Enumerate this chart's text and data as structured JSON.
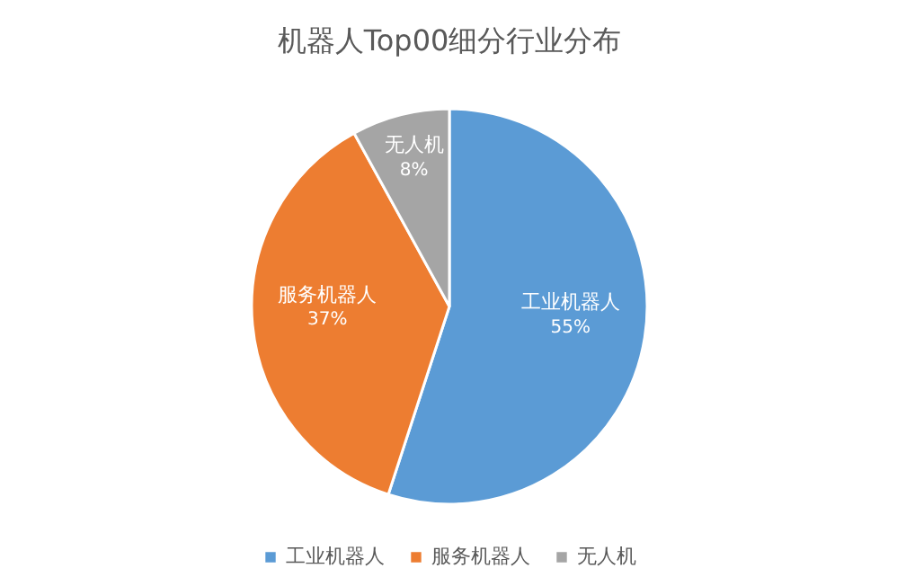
{
  "chart_data": {
    "type": "pie",
    "title": "机器人Top00细分行业分布",
    "categories": [
      "工业机器人",
      "服务机器人",
      "无人机"
    ],
    "values": [
      55,
      37,
      8
    ],
    "colors": [
      "#5b9bd5",
      "#ed7d31",
      "#a5a5a5"
    ],
    "value_labels": [
      "55%",
      "37%",
      "8%"
    ],
    "legend": "bottom"
  }
}
